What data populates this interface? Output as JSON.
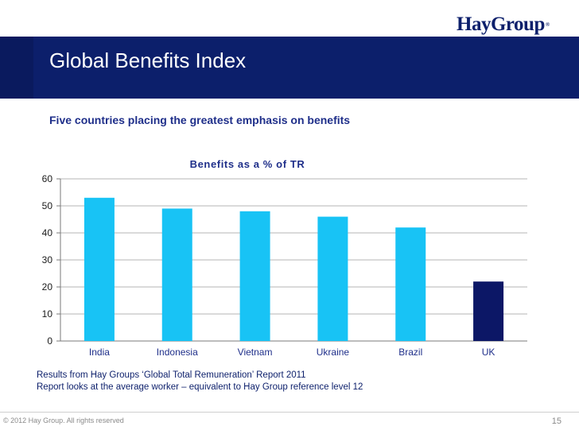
{
  "header": {
    "logo_text": "HayGroup",
    "logo_mark": "®",
    "title": "Global Benefits Index"
  },
  "subtitle": "Five countries placing the greatest emphasis on benefits",
  "chart_data": {
    "type": "bar",
    "title": "Benefits as a % of TR",
    "categories": [
      "India",
      "Indonesia",
      "Vietnam",
      "Ukraine",
      "Brazil",
      "UK"
    ],
    "values": [
      53,
      49,
      48,
      46,
      42,
      22
    ],
    "highlight": "UK",
    "colors": {
      "default": "#18c3f5",
      "highlight": "#0c1766"
    },
    "ylim": [
      0,
      60
    ],
    "yticks": [
      0,
      10,
      20,
      30,
      40,
      50,
      60
    ],
    "grid": true,
    "xlabel": "",
    "ylabel": ""
  },
  "notes": [
    "Results from Hay Groups ‘Global Total Remuneration’ Report 2011",
    "Report looks at the average worker – equivalent to Hay Group reference level 12"
  ],
  "footer": {
    "copyright": "© 2012 Hay Group. All rights reserved",
    "page_number": "15"
  }
}
